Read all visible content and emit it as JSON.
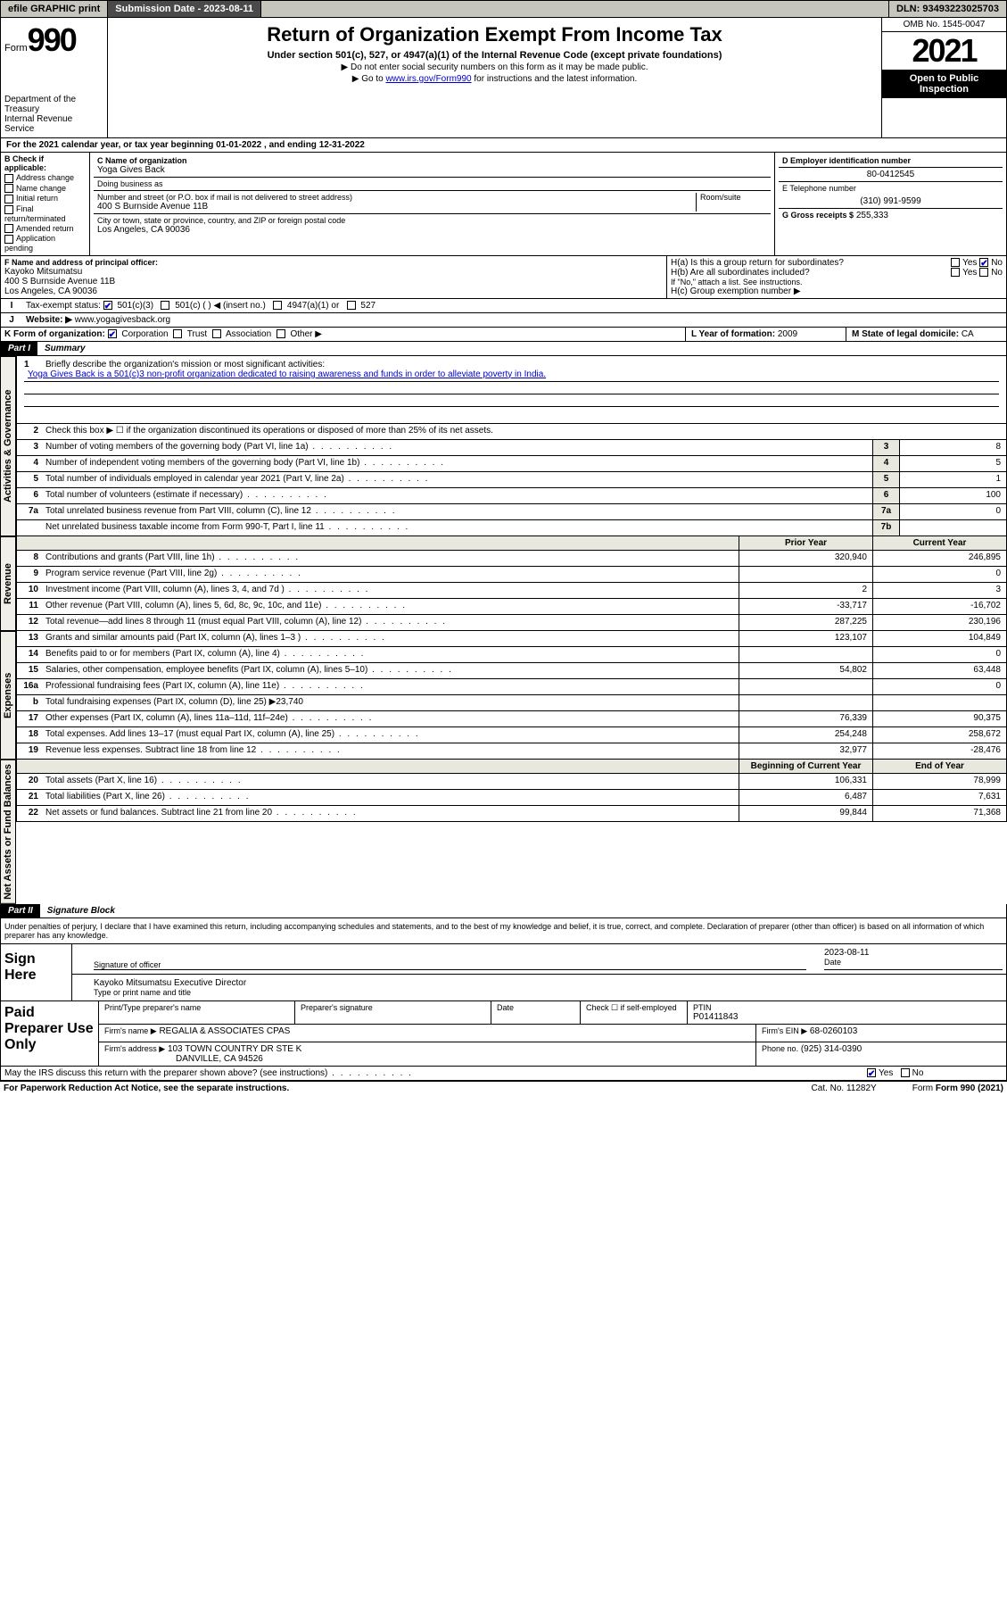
{
  "colors": {
    "topbar_bg": "#c6c6bd",
    "dark_bg": "#4a4a4a",
    "shade_bg": "#e8e8de",
    "link": "#0000cc",
    "black": "#000000",
    "white": "#ffffff"
  },
  "topbar": {
    "efile": "efile GRAPHIC print",
    "submission_label": "Submission Date - 2023-08-11",
    "dln": "DLN: 93493223025703"
  },
  "header": {
    "form_word": "Form",
    "form_num": "990",
    "dept": "Department of the Treasury",
    "irs": "Internal Revenue Service",
    "title": "Return of Organization Exempt From Income Tax",
    "subtitle": "Under section 501(c), 527, or 4947(a)(1) of the Internal Revenue Code (except private foundations)",
    "note1": "▶ Do not enter social security numbers on this form as it may be made public.",
    "note2_pre": "▶ Go to ",
    "note2_link": "www.irs.gov/Form990",
    "note2_post": " for instructions and the latest information.",
    "omb": "OMB No. 1545-0047",
    "year": "2021",
    "open": "Open to Public Inspection"
  },
  "line_a": "For the 2021 calendar year, or tax year beginning 01-01-2022  , and ending 12-31-2022",
  "box_b": {
    "label": "B Check if applicable:",
    "opts": [
      "Address change",
      "Name change",
      "Initial return",
      "Final return/terminated",
      "Amended return",
      "Application pending"
    ]
  },
  "box_c": {
    "name_label": "C Name of organization",
    "name": "Yoga Gives Back",
    "dba_label": "Doing business as",
    "dba": "",
    "street_label": "Number and street (or P.O. box if mail is not delivered to street address)",
    "street": "400 S Burnside Avenue 11B",
    "room_label": "Room/suite",
    "city_label": "City or town, state or province, country, and ZIP or foreign postal code",
    "city": "Los Angeles, CA  90036"
  },
  "box_d": {
    "label": "D Employer identification number",
    "value": "80-0412545"
  },
  "box_e": {
    "label": "E Telephone number",
    "value": "(310) 991-9599"
  },
  "box_g": {
    "label": "G Gross receipts $",
    "value": "255,333"
  },
  "box_f": {
    "label": "F Name and address of principal officer:",
    "name": "Kayoko Mitsumatsu",
    "street": "400 S Burnside Avenue 11B",
    "city": "Los Angeles, CA  90036"
  },
  "box_h": {
    "a": "H(a)  Is this a group return for subordinates?",
    "a_yes": "Yes",
    "a_no": "No",
    "b": "H(b)  Are all subordinates included?",
    "b_note": "If \"No,\" attach a list. See instructions.",
    "c": "H(c)  Group exemption number ▶"
  },
  "line_i": {
    "label": "Tax-exempt status:",
    "opt1": "501(c)(3)",
    "opt2": "501(c) (  ) ◀ (insert no.)",
    "opt3": "4947(a)(1) or",
    "opt4": "527"
  },
  "line_j": {
    "label": "Website: ▶",
    "value": "www.yogagivesback.org"
  },
  "line_k": {
    "label": "K Form of organization:",
    "opts": [
      "Corporation",
      "Trust",
      "Association",
      "Other ▶"
    ]
  },
  "line_l": {
    "label": "L Year of formation:",
    "value": "2009"
  },
  "line_m": {
    "label": "M State of legal domicile:",
    "value": "CA"
  },
  "part1": {
    "label": "Part I",
    "title": "Summary"
  },
  "vtabs": {
    "gov": "Activities & Governance",
    "rev": "Revenue",
    "exp": "Expenses",
    "net": "Net Assets or Fund Balances"
  },
  "summary": {
    "l1_label": "Briefly describe the organization's mission or most significant activities:",
    "l1_text": "Yoga Gives Back is a 501(c)3 non-profit organization dedicated to raising awareness and funds in order to alleviate poverty in India.",
    "l2": "Check this box ▶ ☐  if the organization discontinued its operations or disposed of more than 25% of its net assets.",
    "lines_single": [
      {
        "n": "3",
        "d": "Number of voting members of the governing body (Part VI, line 1a)",
        "box": "3",
        "v": "8"
      },
      {
        "n": "4",
        "d": "Number of independent voting members of the governing body (Part VI, line 1b)",
        "box": "4",
        "v": "5"
      },
      {
        "n": "5",
        "d": "Total number of individuals employed in calendar year 2021 (Part V, line 2a)",
        "box": "5",
        "v": "1"
      },
      {
        "n": "6",
        "d": "Total number of volunteers (estimate if necessary)",
        "box": "6",
        "v": "100"
      },
      {
        "n": "7a",
        "d": "Total unrelated business revenue from Part VIII, column (C), line 12",
        "box": "7a",
        "v": "0"
      },
      {
        "n": "",
        "d": "Net unrelated business taxable income from Form 990-T, Part I, line 11",
        "box": "7b",
        "v": ""
      }
    ],
    "col_prior": "Prior Year",
    "col_current": "Current Year",
    "revenue": [
      {
        "n": "8",
        "d": "Contributions and grants (Part VIII, line 1h)",
        "p": "320,940",
        "c": "246,895"
      },
      {
        "n": "9",
        "d": "Program service revenue (Part VIII, line 2g)",
        "p": "",
        "c": "0"
      },
      {
        "n": "10",
        "d": "Investment income (Part VIII, column (A), lines 3, 4, and 7d )",
        "p": "2",
        "c": "3"
      },
      {
        "n": "11",
        "d": "Other revenue (Part VIII, column (A), lines 5, 6d, 8c, 9c, 10c, and 11e)",
        "p": "-33,717",
        "c": "-16,702"
      },
      {
        "n": "12",
        "d": "Total revenue—add lines 8 through 11 (must equal Part VIII, column (A), line 12)",
        "p": "287,225",
        "c": "230,196"
      }
    ],
    "expenses": [
      {
        "n": "13",
        "d": "Grants and similar amounts paid (Part IX, column (A), lines 1–3 )",
        "p": "123,107",
        "c": "104,849"
      },
      {
        "n": "14",
        "d": "Benefits paid to or for members (Part IX, column (A), line 4)",
        "p": "",
        "c": "0"
      },
      {
        "n": "15",
        "d": "Salaries, other compensation, employee benefits (Part IX, column (A), lines 5–10)",
        "p": "54,802",
        "c": "63,448"
      },
      {
        "n": "16a",
        "d": "Professional fundraising fees (Part IX, column (A), line 11e)",
        "p": "",
        "c": "0"
      },
      {
        "n": "b",
        "d": "Total fundraising expenses (Part IX, column (D), line 25) ▶23,740",
        "p": "",
        "c": "",
        "shade": true
      },
      {
        "n": "17",
        "d": "Other expenses (Part IX, column (A), lines 11a–11d, 11f–24e)",
        "p": "76,339",
        "c": "90,375"
      },
      {
        "n": "18",
        "d": "Total expenses. Add lines 13–17 (must equal Part IX, column (A), line 25)",
        "p": "254,248",
        "c": "258,672"
      },
      {
        "n": "19",
        "d": "Revenue less expenses. Subtract line 18 from line 12",
        "p": "32,977",
        "c": "-28,476"
      }
    ],
    "col_begin": "Beginning of Current Year",
    "col_end": "End of Year",
    "net": [
      {
        "n": "20",
        "d": "Total assets (Part X, line 16)",
        "p": "106,331",
        "c": "78,999"
      },
      {
        "n": "21",
        "d": "Total liabilities (Part X, line 26)",
        "p": "6,487",
        "c": "7,631"
      },
      {
        "n": "22",
        "d": "Net assets or fund balances. Subtract line 21 from line 20",
        "p": "99,844",
        "c": "71,368"
      }
    ]
  },
  "part2": {
    "label": "Part II",
    "title": "Signature Block"
  },
  "penalties": "Under penalties of perjury, I declare that I have examined this return, including accompanying schedules and statements, and to the best of my knowledge and belief, it is true, correct, and complete. Declaration of preparer (other than officer) is based on all information of which preparer has any knowledge.",
  "sign": {
    "left": "Sign Here",
    "sig_label": "Signature of officer",
    "date_label": "Date",
    "date": "2023-08-11",
    "name_label": "Type or print name and title",
    "name": "Kayoko Mitsumatsu  Executive Director"
  },
  "prep": {
    "left": "Paid Preparer Use Only",
    "h1": "Print/Type preparer's name",
    "h2": "Preparer's signature",
    "h3": "Date",
    "h4_check": "Check ☐ if self-employed",
    "h5": "PTIN",
    "ptin": "P01411843",
    "firm_name_label": "Firm's name    ▶",
    "firm_name": "REGALIA & ASSOCIATES CPAS",
    "firm_ein_label": "Firm's EIN ▶",
    "firm_ein": "68-0260103",
    "firm_addr_label": "Firm's address ▶",
    "firm_addr1": "103 TOWN COUNTRY DR STE K",
    "firm_addr2": "DANVILLE, CA  94526",
    "phone_label": "Phone no.",
    "phone": "(925) 314-0390"
  },
  "discuss": {
    "q": "May the IRS discuss this return with the preparer shown above? (see instructions)",
    "yes": "Yes",
    "no": "No"
  },
  "footer": {
    "left": "For Paperwork Reduction Act Notice, see the separate instructions.",
    "mid": "Cat. No. 11282Y",
    "right": "Form 990 (2021)"
  }
}
